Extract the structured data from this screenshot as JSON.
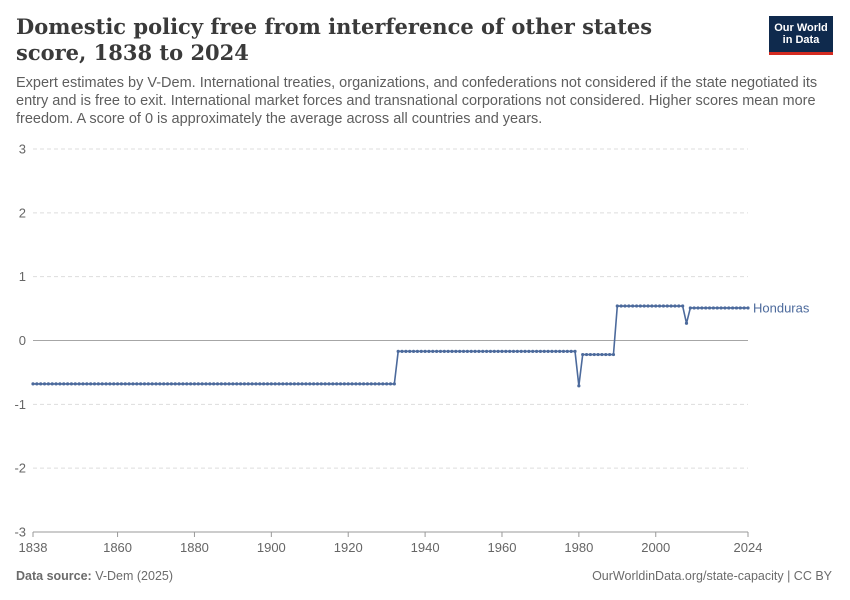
{
  "header": {
    "title": "Domestic policy free from interference of other states score, 1838 to 2024",
    "subtitle": "Expert estimates by V-Dem. International treaties, organizations, and confederations not considered if the state negotiated its entry and is free to exit. International market forces and transnational corporations not considered. Higher scores mean more freedom. A score of 0 is approximately the average across all countries and years.",
    "logo_line1": "Our World",
    "logo_line2": "in Data"
  },
  "footer": {
    "source_label": "Data source:",
    "source_value": "V-Dem (2025)",
    "url_license": "OurWorldinData.org/state-capacity | CC BY"
  },
  "colors": {
    "series": "#4c6a9c",
    "grid": "#dddddd",
    "zero": "#a6a6a6",
    "axis": "#666666"
  },
  "chart_data": {
    "type": "line",
    "title": "Domestic policy free from interference of other states score, 1838 to 2024",
    "xlabel": "",
    "ylabel": "",
    "xlim": [
      1838,
      2024
    ],
    "ylim": [
      -3,
      3
    ],
    "x_ticks": [
      1838,
      1860,
      1880,
      1900,
      1920,
      1940,
      1960,
      1980,
      2000,
      2024
    ],
    "y_ticks": [
      3,
      2,
      1,
      0,
      -1,
      -2,
      -3
    ],
    "grid": true,
    "legend": "inline-right",
    "series": [
      {
        "name": "Honduras",
        "segments": [
          {
            "from": 1838,
            "to": 1932,
            "value": -0.68
          },
          {
            "from": 1933,
            "to": 1979,
            "value": -0.17
          },
          {
            "from": 1980,
            "to": 1980,
            "value": -0.71
          },
          {
            "from": 1981,
            "to": 1989,
            "value": -0.22
          },
          {
            "from": 1990,
            "to": 2007,
            "value": 0.54
          },
          {
            "from": 2008,
            "to": 2008,
            "value": 0.27
          },
          {
            "from": 2009,
            "to": 2024,
            "value": 0.51
          }
        ]
      }
    ]
  }
}
